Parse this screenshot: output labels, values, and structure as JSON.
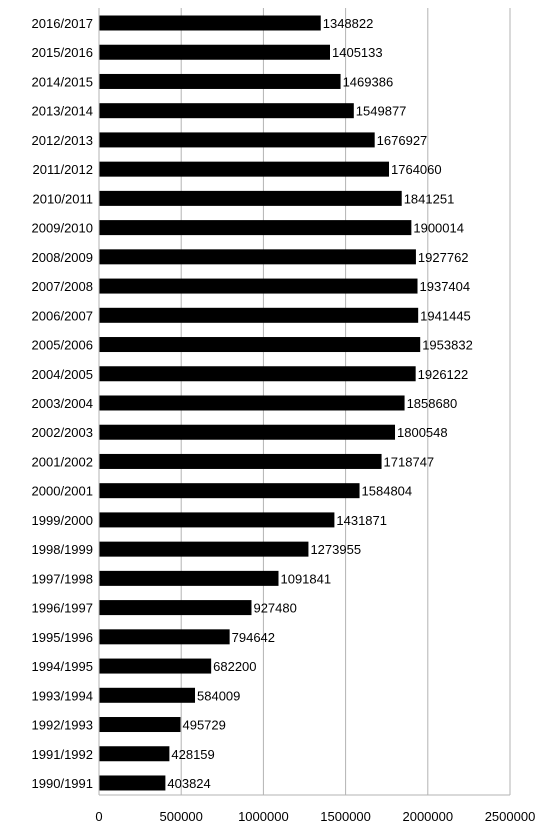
{
  "chart_data": {
    "type": "bar",
    "orientation": "horizontal",
    "title": "",
    "xlabel": "",
    "ylabel": "",
    "xlim": [
      0,
      2500000
    ],
    "x_ticks": [
      "0",
      "500000",
      "1000000",
      "1500000",
      "2000000",
      "2500000"
    ],
    "grid": true,
    "legend": "none",
    "categories": [
      "2016/2017",
      "2015/2016",
      "2014/2015",
      "2013/2014",
      "2012/2013",
      "2011/2012",
      "2010/2011",
      "2009/2010",
      "2008/2009",
      "2007/2008",
      "2006/2007",
      "2005/2006",
      "2004/2005",
      "2003/2004",
      "2002/2003",
      "2001/2002",
      "2000/2001",
      "1999/2000",
      "1998/1999",
      "1997/1998",
      "1996/1997",
      "1995/1996",
      "1994/1995",
      "1993/1994",
      "1992/1993",
      "1991/1992",
      "1990/1991"
    ],
    "values": [
      1348822,
      1405133,
      1469386,
      1549877,
      1676927,
      1764060,
      1841251,
      1900014,
      1927762,
      1937404,
      1941445,
      1953832,
      1926122,
      1858680,
      1800548,
      1718747,
      1584804,
      1431871,
      1273955,
      1091841,
      927480,
      794642,
      682200,
      584009,
      495729,
      428159,
      403824
    ],
    "value_labels": [
      "1348822",
      "1405133",
      "1469386",
      "1549877",
      "1676927",
      "1764060",
      "1841251",
      "1900014",
      "1927762",
      "1937404",
      "1941445",
      "1953832",
      "1926122",
      "1858680",
      "1800548",
      "1718747",
      "1584804",
      "1431871",
      "1273955",
      "1091841",
      "927480",
      "794642",
      "682200",
      "584009",
      "495729",
      "428159",
      "403824"
    ],
    "bar_color": "#000000",
    "grid_color": "#b3b3b3"
  }
}
